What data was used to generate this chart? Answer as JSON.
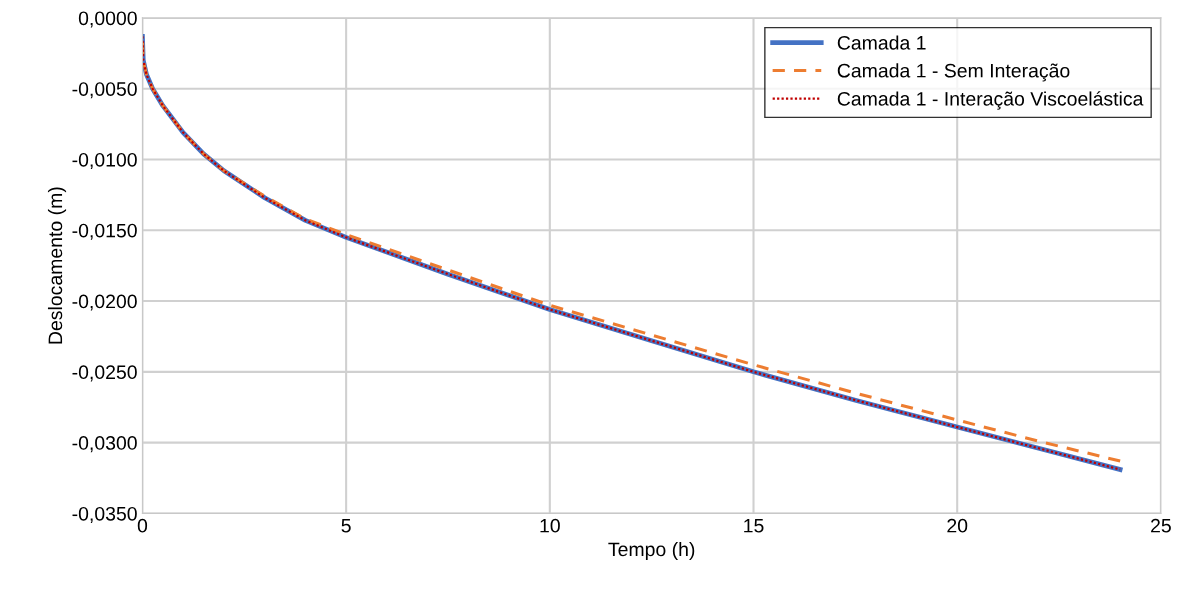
{
  "chart_data": {
    "type": "line",
    "xlabel": "Tempo (h)",
    "ylabel": "Deslocamento (m)",
    "xlim": [
      0,
      25
    ],
    "xticks": [
      0,
      5,
      10,
      15,
      20,
      25
    ],
    "ylim": [
      -0.035,
      0
    ],
    "yticks": [
      {
        "value": 0,
        "label": "0,0000"
      },
      {
        "value": -0.005,
        "label": "-0,0050"
      },
      {
        "value": -0.01,
        "label": "-0,0100"
      },
      {
        "value": -0.015,
        "label": "-0,0150"
      },
      {
        "value": -0.02,
        "label": "-0,0200"
      },
      {
        "value": -0.025,
        "label": "-0,0250"
      },
      {
        "value": -0.03,
        "label": "-0,0300"
      },
      {
        "value": -0.035,
        "label": "-0,0350"
      }
    ],
    "grid": true,
    "legend": "top right",
    "marker": "none",
    "series": [
      {
        "name": "Camada 1",
        "color": "#4472c4",
        "line_style": "solid",
        "x": [
          0,
          0.02,
          0.1,
          0.25,
          0.5,
          1,
          1.5,
          2,
          3,
          4,
          5,
          7.5,
          10,
          12.5,
          15,
          17.5,
          20,
          22,
          24
        ],
        "values": [
          -0.0013,
          -0.003,
          -0.004,
          -0.005,
          -0.0062,
          -0.0081,
          -0.0096,
          -0.0108,
          -0.0127,
          -0.0143,
          -0.0155,
          -0.0181,
          -0.0206,
          -0.0228,
          -0.025,
          -0.027,
          -0.0289,
          -0.0304,
          -0.0319
        ]
      },
      {
        "name": "Camada 1 - Sem Interação",
        "color": "#ed7d31",
        "line_style": "dashed",
        "x": [
          0,
          0.02,
          0.1,
          0.25,
          0.5,
          1,
          1.5,
          2,
          3,
          4,
          5,
          7.5,
          10,
          12.5,
          15,
          17.5,
          20,
          22,
          24
        ],
        "values": [
          -0.0013,
          -0.003,
          -0.004,
          -0.005,
          -0.0062,
          -0.0081,
          -0.0096,
          -0.0108,
          -0.0126,
          -0.0142,
          -0.0153,
          -0.0178,
          -0.0203,
          -0.0224,
          -0.0245,
          -0.0265,
          -0.0284,
          -0.0299,
          -0.0313
        ]
      },
      {
        "name": "Camada 1 - Interação Viscoelástica",
        "color": "#c00000",
        "line_style": "dotted",
        "x": [
          0,
          0.02,
          0.1,
          0.25,
          0.5,
          1,
          1.5,
          2,
          3,
          4,
          5,
          7.5,
          10,
          12.5,
          15,
          17.5,
          20,
          22,
          24
        ],
        "values": [
          -0.0013,
          -0.003,
          -0.004,
          -0.005,
          -0.0062,
          -0.0081,
          -0.0096,
          -0.0108,
          -0.0127,
          -0.0143,
          -0.0155,
          -0.0181,
          -0.0206,
          -0.0228,
          -0.025,
          -0.027,
          -0.0289,
          -0.0304,
          -0.0319
        ]
      }
    ]
  }
}
